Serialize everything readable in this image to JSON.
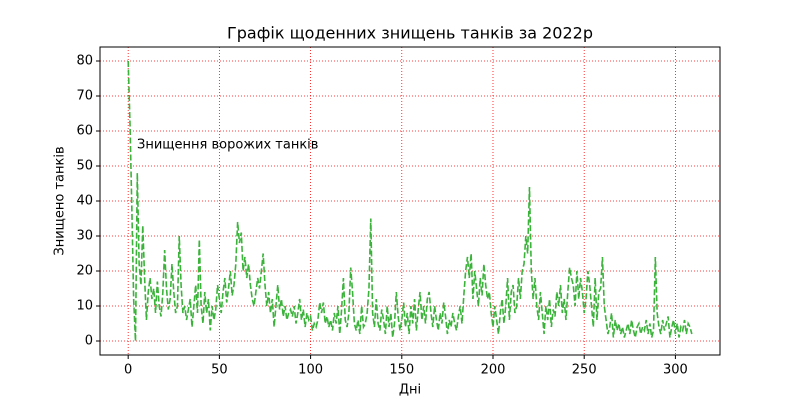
{
  "chart_data": {
    "type": "line",
    "title": "Графік щоденних знищень танків за 2022р",
    "xlabel": "Дні",
    "ylabel": "Знищено танків",
    "annotation": "Знищення ворожих танків",
    "color": "#3bb33b",
    "grid": true,
    "grid_color": "#ff0000",
    "xlim": [
      -15.45,
      324.45
    ],
    "ylim": [
      -4,
      84
    ],
    "xticks": [
      0,
      50,
      100,
      150,
      200,
      250,
      300
    ],
    "yticks": [
      0,
      10,
      20,
      30,
      40,
      50,
      60,
      70,
      80
    ],
    "x": [
      0,
      1,
      2,
      3,
      4,
      5,
      6,
      7,
      8,
      9,
      10,
      11,
      12,
      13,
      14,
      15,
      16,
      17,
      18,
      19,
      20,
      21,
      22,
      23,
      24,
      25,
      26,
      27,
      28,
      29,
      30,
      31,
      32,
      33,
      34,
      35,
      36,
      37,
      38,
      39,
      40,
      41,
      42,
      43,
      44,
      45,
      46,
      47,
      48,
      49,
      50,
      51,
      52,
      53,
      54,
      55,
      56,
      57,
      58,
      59,
      60,
      61,
      62,
      63,
      64,
      65,
      66,
      67,
      68,
      69,
      70,
      71,
      72,
      73,
      74,
      75,
      76,
      77,
      78,
      79,
      80,
      81,
      82,
      83,
      84,
      85,
      86,
      87,
      88,
      89,
      90,
      91,
      92,
      93,
      94,
      95,
      96,
      97,
      98,
      99,
      100,
      101,
      102,
      103,
      104,
      105,
      106,
      107,
      108,
      109,
      110,
      111,
      112,
      113,
      114,
      115,
      116,
      117,
      118,
      119,
      120,
      121,
      122,
      123,
      124,
      125,
      126,
      127,
      128,
      129,
      130,
      131,
      132,
      133,
      134,
      135,
      136,
      137,
      138,
      139,
      140,
      141,
      142,
      143,
      144,
      145,
      146,
      147,
      148,
      149,
      150,
      151,
      152,
      153,
      154,
      155,
      156,
      157,
      158,
      159,
      160,
      161,
      162,
      163,
      164,
      165,
      166,
      167,
      168,
      169,
      170,
      171,
      172,
      173,
      174,
      175,
      176,
      177,
      178,
      179,
      180,
      181,
      182,
      183,
      184,
      185,
      186,
      187,
      188,
      189,
      190,
      191,
      192,
      193,
      194,
      195,
      196,
      197,
      198,
      199,
      200,
      201,
      202,
      203,
      204,
      205,
      206,
      207,
      208,
      209,
      210,
      211,
      212,
      213,
      214,
      215,
      216,
      217,
      218,
      219,
      220,
      221,
      222,
      223,
      224,
      225,
      226,
      227,
      228,
      229,
      230,
      231,
      232,
      233,
      234,
      235,
      236,
      237,
      238,
      239,
      240,
      241,
      242,
      243,
      244,
      245,
      246,
      247,
      248,
      249,
      250,
      251,
      252,
      253,
      254,
      255,
      256,
      257,
      258,
      259,
      260,
      261,
      262,
      263,
      264,
      265,
      266,
      267,
      268,
      269,
      270,
      271,
      272,
      273,
      274,
      275,
      276,
      277,
      278,
      279,
      280,
      281,
      282,
      283,
      284,
      285,
      286,
      287,
      288,
      289,
      290,
      291,
      292,
      293,
      294,
      295,
      296,
      297,
      298,
      299,
      300,
      301,
      302,
      303,
      304,
      305,
      306,
      307,
      308,
      309
    ],
    "values": [
      80,
      62,
      38,
      12,
      0,
      48,
      22,
      16,
      33,
      18,
      6,
      14,
      18,
      12,
      15,
      8,
      17,
      10,
      7,
      14,
      26,
      15,
      9,
      12,
      22,
      14,
      8,
      10,
      30,
      16,
      8,
      10,
      6,
      9,
      12,
      4,
      10,
      16,
      8,
      29,
      10,
      5,
      14,
      8,
      12,
      3,
      10,
      6,
      9,
      16,
      12,
      8,
      14,
      18,
      11,
      15,
      20,
      13,
      16,
      22,
      34,
      28,
      31,
      20,
      24,
      18,
      22,
      16,
      12,
      10,
      14,
      18,
      15,
      20,
      25,
      16,
      10,
      14,
      8,
      12,
      4,
      10,
      16,
      9,
      12,
      7,
      10,
      6,
      8,
      9,
      7,
      10,
      5,
      8,
      12,
      6,
      9,
      4,
      8,
      6,
      7,
      3,
      5,
      4,
      6,
      11,
      8,
      11,
      5,
      7,
      4,
      6,
      3,
      8,
      5,
      10,
      2,
      9,
      18,
      6,
      4,
      8,
      21,
      14,
      5,
      3,
      6,
      2,
      10,
      4,
      5,
      8,
      15,
      35,
      8,
      4,
      12,
      5,
      3,
      9,
      6,
      2,
      10,
      4,
      8,
      1,
      5,
      14,
      7,
      3,
      6,
      11,
      4,
      8,
      2,
      10,
      5,
      12,
      3,
      9,
      14,
      6,
      10,
      5,
      12,
      14,
      8,
      4,
      10,
      6,
      3,
      8,
      5,
      11,
      7,
      2,
      6,
      4,
      8,
      5,
      3,
      7,
      10,
      5,
      13,
      20,
      24,
      18,
      25,
      12,
      20,
      15,
      10,
      18,
      13,
      22,
      16,
      12,
      14,
      8,
      4,
      10,
      6,
      2,
      8,
      12,
      5,
      10,
      18,
      6,
      14,
      16,
      8,
      10,
      18,
      12,
      20,
      22,
      30,
      25,
      44,
      20,
      12,
      18,
      10,
      6,
      14,
      8,
      2,
      10,
      6,
      12,
      4,
      9,
      7,
      14,
      10,
      16,
      8,
      12,
      6,
      14,
      21,
      18,
      16,
      10,
      20,
      12,
      18,
      14,
      8,
      12,
      20,
      16,
      10,
      4,
      18,
      6,
      14,
      15,
      24,
      10,
      6,
      2,
      4,
      8,
      1,
      6,
      3,
      5,
      2,
      4,
      1,
      3,
      5,
      2,
      6,
      3,
      1,
      4,
      5,
      2,
      4,
      3,
      6,
      2,
      5,
      1,
      3,
      24,
      8,
      4,
      2,
      6,
      3,
      5,
      7,
      1,
      4,
      6,
      2,
      5,
      1,
      4,
      3,
      6,
      2,
      5,
      4,
      2
    ]
  }
}
